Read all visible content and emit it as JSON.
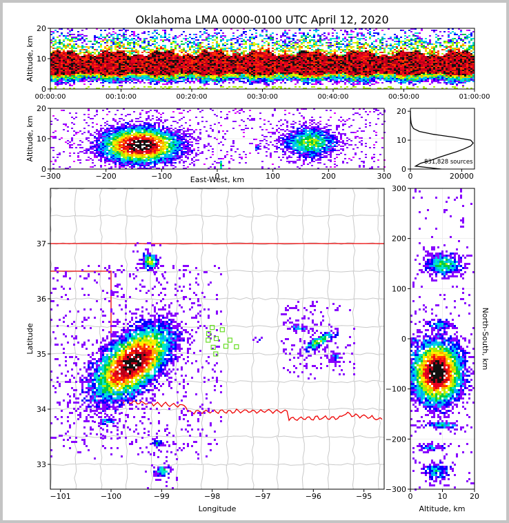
{
  "title": "Oklahoma LMA 0000-0100 UTC April 12, 2020",
  "colors": {
    "density": [
      "#dd00ff",
      "#8800ff",
      "#0000ff",
      "#00aaff",
      "#00e5d0",
      "#00cc44",
      "#aaee00",
      "#ffee00",
      "#ffaa00",
      "#ff3300",
      "#e8001e",
      "#b80018",
      "#111111"
    ],
    "state_border": "#ee0000",
    "county_lines": "#c8c8c8",
    "station": "#66dd22",
    "frame": "#c4c4c4"
  },
  "chart_data": [
    {
      "id": "time_height",
      "type": "heatmap",
      "xlabel": "",
      "ylabel": "Altitude, km",
      "xticks": [
        "00:00:00",
        "00:10:00",
        "00:20:00",
        "00:30:00",
        "00:40:00",
        "00:50:00",
        "01:00:00"
      ],
      "xlim_minutes": [
        0,
        60
      ],
      "ylim": [
        0,
        20
      ],
      "yticks": [
        0,
        10,
        20
      ],
      "band_core_km": [
        5,
        12
      ],
      "band_envelope_km": [
        2,
        20
      ]
    },
    {
      "id": "ew_height",
      "type": "heatmap",
      "xlabel": "East-West, km",
      "ylabel": "Altitude, km",
      "xlim": [
        -300,
        300
      ],
      "xticks": [
        -300,
        -200,
        -100,
        0,
        100,
        200,
        300
      ],
      "ylim": [
        0,
        20
      ],
      "yticks": [
        0,
        10,
        20
      ],
      "clusters": [
        {
          "x": -140,
          "z": 8,
          "sx": 48,
          "sz": 4,
          "weight": 1.0
        },
        {
          "x": 165,
          "z": 9,
          "sx": 35,
          "sz": 3.5,
          "weight": 0.45
        },
        {
          "x": 70,
          "z": 7.5,
          "sx": 3,
          "sz": 1,
          "weight": 0.25
        },
        {
          "x": 5,
          "z": 1.5,
          "sx": 2,
          "sz": 1.2,
          "weight": 0.5
        }
      ]
    },
    {
      "id": "altitude_histogram",
      "type": "line",
      "xlabel": "",
      "ylabel": "",
      "xlim": [
        0,
        25000
      ],
      "xticks": [
        0,
        20000
      ],
      "ylim": [
        0,
        21
      ],
      "yticks": [
        0,
        10,
        20
      ],
      "altitude_km": [
        0,
        1,
        2,
        3,
        4,
        5,
        6,
        7,
        8,
        9,
        10,
        11,
        12,
        13,
        14,
        15,
        16,
        17,
        18,
        19,
        20
      ],
      "counts": [
        12000,
        2000,
        4000,
        8000,
        11000,
        14500,
        18000,
        21000,
        23500,
        24500,
        23500,
        17000,
        9000,
        3500,
        1200,
        600,
        300,
        150,
        80,
        40,
        20
      ],
      "annotation": "831,828 sources"
    },
    {
      "id": "plan_view",
      "type": "heatmap",
      "xlabel": "Longitude",
      "ylabel": "Latitude",
      "xlim": [
        -101.2,
        -94.6
      ],
      "ylim": [
        32.55,
        38.0
      ],
      "xticks": [
        -101,
        -100,
        -99,
        -98,
        -97,
        -96,
        -95
      ],
      "xtick_labels": [
        "−101",
        "−100",
        "−99",
        "−98",
        "−97",
        "−96",
        "−95"
      ],
      "yticks": [
        33,
        34,
        35,
        36,
        37
      ],
      "storms": [
        {
          "lon": -99.6,
          "lat": 34.85,
          "slon": 0.55,
          "slat": 0.28,
          "rot": -38,
          "weight": 1.0
        },
        {
          "lon": -99.25,
          "lat": 36.7,
          "slon": 0.1,
          "slat": 0.1,
          "rot": 0,
          "weight": 0.5
        },
        {
          "lon": -99.1,
          "lat": 33.4,
          "slon": 0.08,
          "slat": 0.05,
          "rot": 0,
          "weight": 0.3
        },
        {
          "lon": -99.0,
          "lat": 32.9,
          "slon": 0.1,
          "slat": 0.06,
          "rot": 0,
          "weight": 0.4
        },
        {
          "lon": -100.1,
          "lat": 33.8,
          "slon": 0.1,
          "slat": 0.04,
          "rot": 0,
          "weight": 0.35
        },
        {
          "lon": -96.3,
          "lat": 35.5,
          "slon": 0.12,
          "slat": 0.04,
          "rot": 10,
          "weight": 0.3
        },
        {
          "lon": -95.9,
          "lat": 35.25,
          "slon": 0.22,
          "slat": 0.06,
          "rot": -25,
          "weight": 0.5
        },
        {
          "lon": -95.6,
          "lat": 34.95,
          "slon": 0.08,
          "slat": 0.06,
          "rot": -35,
          "weight": 0.25
        },
        {
          "lon": -97.1,
          "lat": 35.28,
          "slon": 0.03,
          "slat": 0.02,
          "rot": 0,
          "weight": 0.2
        },
        {
          "lon": -99.95,
          "lat": 36.15,
          "slon": 0.03,
          "slat": 0.03,
          "rot": 0,
          "weight": 0.15
        }
      ],
      "stations": [
        [
          -98.0,
          35.48
        ],
        [
          -97.8,
          35.44
        ],
        [
          -98.07,
          35.37
        ],
        [
          -98.08,
          35.25
        ],
        [
          -97.65,
          35.25
        ],
        [
          -97.98,
          35.12
        ],
        [
          -97.73,
          35.14
        ],
        [
          -97.52,
          35.13
        ],
        [
          -97.93,
          35.0
        ],
        [
          -97.92,
          35.28
        ]
      ]
    },
    {
      "id": "ns_height",
      "type": "heatmap",
      "xlabel": "Altitude, km",
      "ylabel": "North-South, km",
      "xlim": [
        0,
        20
      ],
      "xticks": [
        0,
        10,
        20
      ],
      "ylim": [
        -300,
        300
      ],
      "yticks": [
        -300,
        -200,
        -100,
        0,
        100,
        200,
        300
      ],
      "clusters": [
        {
          "y": -65,
          "z": 8,
          "sy": 40,
          "sz": 5,
          "weight": 1.0
        },
        {
          "y": 150,
          "z": 10,
          "sy": 15,
          "sz": 4,
          "weight": 0.4
        },
        {
          "y": 30,
          "z": 9,
          "sy": 8,
          "sz": 3,
          "weight": 0.25
        },
        {
          "y": -170,
          "z": 10,
          "sy": 5,
          "sz": 4,
          "weight": 0.3
        },
        {
          "y": -215,
          "z": 6,
          "sy": 5,
          "sz": 3,
          "weight": 0.25
        },
        {
          "y": -262,
          "z": 8,
          "sy": 12,
          "sz": 3,
          "weight": 0.3
        },
        {
          "y": 0,
          "z": 1,
          "sy": 3,
          "sz": 1,
          "weight": 0.3
        }
      ]
    }
  ]
}
